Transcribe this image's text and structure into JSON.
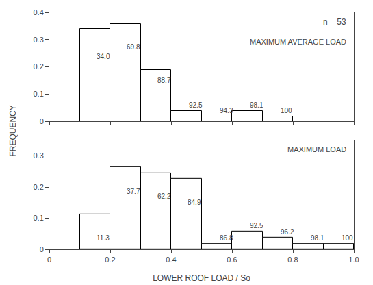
{
  "chart_data": [
    {
      "type": "histogram",
      "title": "MAXIMUM AVERAGE LOAD",
      "subtitle": "n = 53",
      "bins": [
        0.1,
        0.2,
        0.3,
        0.4,
        0.5,
        0.6,
        0.7,
        0.8
      ],
      "values": [
        0.34,
        0.358,
        0.189,
        0.038,
        0.019,
        0.038,
        0.019
      ],
      "annotations": [
        {
          "text": "34.0",
          "x": 0.15,
          "y": 0.22
        },
        {
          "text": "69.8",
          "x": 0.25,
          "y": 0.255
        },
        {
          "text": "88.7",
          "x": 0.35,
          "y": 0.13
        },
        {
          "text": "92.5",
          "x": 0.455,
          "y": 0.04
        },
        {
          "text": "94.3",
          "x": 0.555,
          "y": 0.02
        },
        {
          "text": "98.1",
          "x": 0.655,
          "y": 0.04
        },
        {
          "text": "100",
          "x": 0.755,
          "y": 0.02
        }
      ],
      "xlim": [
        0,
        1.0
      ],
      "xticks": [
        0,
        0.2,
        0.4,
        0.6,
        0.8,
        {
          "value": 1.0,
          "label": "1.0"
        }
      ],
      "ylim": [
        0,
        0.4
      ],
      "yticks": [
        0,
        0.1,
        0.2,
        0.3,
        0.4
      ],
      "tick_labels": "y",
      "color": "white",
      "grid": false
    },
    {
      "type": "histogram",
      "title": "MAXIMUM LOAD",
      "bins": [
        0.1,
        0.2,
        0.3,
        0.4,
        0.5,
        0.6,
        0.7,
        0.8,
        0.9,
        1.0
      ],
      "values": [
        0.113,
        0.264,
        0.245,
        0.226,
        0.019,
        0.057,
        0.038,
        0.019,
        0.019
      ],
      "annotations": [
        {
          "text": "11.3",
          "x": 0.15,
          "y": 0.02
        },
        {
          "text": "37.7",
          "x": 0.25,
          "y": 0.17
        },
        {
          "text": "62.2",
          "x": 0.35,
          "y": 0.155
        },
        {
          "text": "84.9",
          "x": 0.45,
          "y": 0.135
        },
        {
          "text": "86.8",
          "x": 0.555,
          "y": 0.02
        },
        {
          "text": "92.5",
          "x": 0.655,
          "y": 0.06
        },
        {
          "text": "96.2",
          "x": 0.755,
          "y": 0.04
        },
        {
          "text": "98.1",
          "x": 0.855,
          "y": 0.02
        },
        {
          "text": "100",
          "x": 0.955,
          "y": 0.02
        }
      ],
      "xlim": [
        0,
        1.0
      ],
      "xticks": [
        0,
        0.2,
        0.4,
        0.6,
        0.8,
        {
          "value": 1.0,
          "label": "1.0"
        }
      ],
      "ylim": [
        0,
        0.35
      ],
      "yticks": [
        0,
        0.1,
        0.2,
        0.3
      ],
      "xlabel": "LOWER ROOF LOAD / So",
      "ylabel": "FREQUENCY",
      "color": "white",
      "grid": false
    }
  ]
}
